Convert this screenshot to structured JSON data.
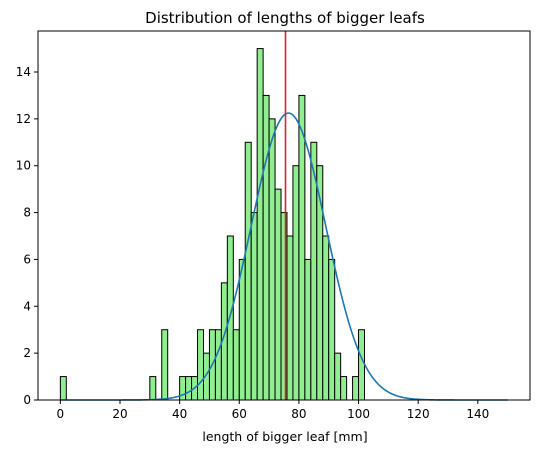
{
  "chart_data": {
    "type": "bar",
    "title": "Distribution of lengths of bigger leafs",
    "xlabel": "length of bigger leaf [mm]",
    "ylabel": "",
    "xlim": [
      -7.5,
      157.5
    ],
    "ylim": [
      0,
      15.75
    ],
    "xticks": [
      0,
      20,
      40,
      60,
      80,
      100,
      120,
      140
    ],
    "yticks": [
      0,
      2,
      4,
      6,
      8,
      10,
      12,
      14
    ],
    "grid": false,
    "bin_width": 2,
    "bars": [
      {
        "x": 0,
        "count": 1
      },
      {
        "x": 30,
        "count": 1
      },
      {
        "x": 34,
        "count": 3
      },
      {
        "x": 40,
        "count": 1
      },
      {
        "x": 42,
        "count": 1
      },
      {
        "x": 44,
        "count": 1
      },
      {
        "x": 46,
        "count": 3
      },
      {
        "x": 48,
        "count": 2
      },
      {
        "x": 50,
        "count": 3
      },
      {
        "x": 52,
        "count": 3
      },
      {
        "x": 54,
        "count": 5
      },
      {
        "x": 56,
        "count": 7
      },
      {
        "x": 58,
        "count": 3
      },
      {
        "x": 60,
        "count": 6
      },
      {
        "x": 62,
        "count": 11
      },
      {
        "x": 64,
        "count": 8
      },
      {
        "x": 66,
        "count": 15
      },
      {
        "x": 68,
        "count": 13
      },
      {
        "x": 70,
        "count": 12
      },
      {
        "x": 72,
        "count": 9
      },
      {
        "x": 74,
        "count": 8
      },
      {
        "x": 76,
        "count": 7
      },
      {
        "x": 78,
        "count": 10
      },
      {
        "x": 80,
        "count": 13
      },
      {
        "x": 82,
        "count": 6
      },
      {
        "x": 84,
        "count": 11
      },
      {
        "x": 86,
        "count": 10
      },
      {
        "x": 88,
        "count": 7
      },
      {
        "x": 90,
        "count": 6
      },
      {
        "x": 92,
        "count": 2
      },
      {
        "x": 94,
        "count": 1
      },
      {
        "x": 98,
        "count": 1
      },
      {
        "x": 100,
        "count": 3
      }
    ],
    "bar_color": "#90ee90",
    "bar_edge_color": "#000000",
    "normal_curve": {
      "mean": 76.5,
      "std": 12.5,
      "peak": 12.25,
      "x_range": [
        0,
        150
      ],
      "color": "#1f77b4"
    },
    "mean_line": {
      "x": 75.5,
      "color": "#d62728"
    }
  }
}
